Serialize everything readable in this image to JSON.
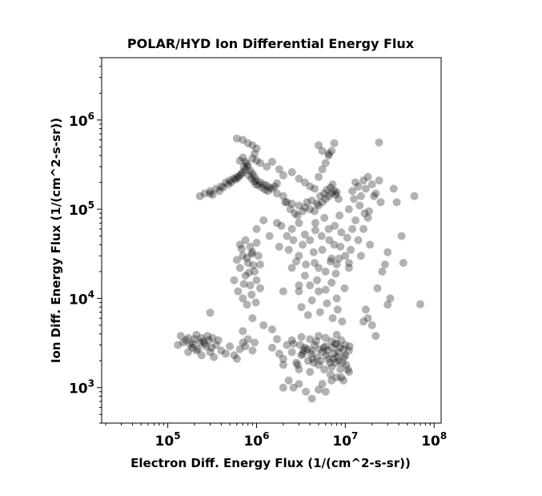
{
  "chart_data": {
    "type": "scatter",
    "title": "POLAR/HYD  Ion Differential Energy Flux",
    "xlabel": "Electron Diff. Energy Flux (1/(cm^2-s-sr))",
    "ylabel": "Ion Diff. Energy Flux (1/(cm^2-s-sr))",
    "xscale": "log",
    "yscale": "log",
    "xlim": [
      18000,
      120000000
    ],
    "ylim": [
      400,
      5000000
    ],
    "xticks": [
      {
        "base": "10",
        "exp": "5",
        "value": 100000
      },
      {
        "base": "10",
        "exp": "6",
        "value": 1000000
      },
      {
        "base": "10",
        "exp": "7",
        "value": 10000000
      },
      {
        "base": "10",
        "exp": "8",
        "value": 100000000
      }
    ],
    "yticks": [
      {
        "base": "10",
        "exp": "3",
        "value": 1000
      },
      {
        "base": "10",
        "exp": "4",
        "value": 10000
      },
      {
        "base": "10",
        "exp": "5",
        "value": 100000
      },
      {
        "base": "10",
        "exp": "6",
        "value": 1000000
      }
    ],
    "grid": false,
    "marker_color": "#000000",
    "marker_opacity": 0.3,
    "points": [
      [
        130000,
        3000
      ],
      [
        160000,
        3400
      ],
      [
        190000,
        3100
      ],
      [
        220000,
        2700
      ],
      [
        250000,
        3300
      ],
      [
        270000,
        2900
      ],
      [
        300000,
        2500
      ],
      [
        320000,
        3600
      ],
      [
        350000,
        3000
      ],
      [
        400000,
        2600
      ],
      [
        140000,
        3800
      ],
      [
        170000,
        2500
      ],
      [
        210000,
        3900
      ],
      [
        240000,
        2300
      ],
      [
        280000,
        3800
      ],
      [
        330000,
        2200
      ],
      [
        370000,
        3400
      ],
      [
        450000,
        2400
      ],
      [
        500000,
        2900
      ],
      [
        560000,
        2300
      ],
      [
        600000,
        2100
      ],
      [
        650000,
        2700
      ],
      [
        700000,
        3200
      ],
      [
        750000,
        2900
      ],
      [
        800000,
        3500
      ],
      [
        900000,
        2600
      ],
      [
        950000,
        3200
      ],
      [
        300000,
        6900
      ],
      [
        700000,
        4300
      ],
      [
        150000,
        3200
      ],
      [
        180000,
        3000
      ],
      [
        200000,
        3500
      ],
      [
        230000,
        3200
      ],
      [
        260000,
        3100
      ],
      [
        290000,
        3400
      ],
      [
        310000,
        2800
      ],
      [
        190000,
        2800
      ],
      [
        210000,
        2600
      ],
      [
        240000,
        3600
      ],
      [
        170000,
        3600
      ],
      [
        1500000,
        2800
      ],
      [
        1800000,
        2400
      ],
      [
        2000000,
        2100
      ],
      [
        2200000,
        3000
      ],
      [
        2500000,
        2500
      ],
      [
        2800000,
        1900
      ],
      [
        3000000,
        1600
      ],
      [
        3200000,
        2300
      ],
      [
        3500000,
        2800
      ],
      [
        3800000,
        2000
      ],
      [
        4000000,
        1500
      ],
      [
        4200000,
        2600
      ],
      [
        4500000,
        3000
      ],
      [
        4800000,
        2200
      ],
      [
        5000000,
        1800
      ],
      [
        5500000,
        2500
      ],
      [
        6000000,
        2900
      ],
      [
        6500000,
        2100
      ],
      [
        7000000,
        1700
      ],
      [
        7500000,
        2400
      ],
      [
        8000000,
        3100
      ],
      [
        8500000,
        2000
      ],
      [
        9000000,
        1300
      ],
      [
        9500000,
        2700
      ],
      [
        10000000,
        2300
      ],
      [
        2300000,
        1200
      ],
      [
        2600000,
        1000
      ],
      [
        3000000,
        1100
      ],
      [
        3600000,
        900
      ],
      [
        4200000,
        750
      ],
      [
        5000000,
        950
      ],
      [
        5500000,
        1100
      ],
      [
        6000000,
        900
      ],
      [
        7000000,
        1200
      ],
      [
        8000000,
        1300
      ],
      [
        9500000,
        1200
      ],
      [
        11000000,
        1500
      ],
      [
        2500000,
        3400
      ],
      [
        3200000,
        3700
      ],
      [
        4000000,
        3500
      ],
      [
        5000000,
        3800
      ],
      [
        6000000,
        3600
      ],
      [
        7000000,
        3300
      ],
      [
        8000000,
        3900
      ],
      [
        9000000,
        3400
      ],
      [
        10000000,
        3000
      ],
      [
        11000000,
        2600
      ],
      [
        1700000,
        3500
      ],
      [
        2000000,
        1800
      ],
      [
        4400000,
        1900
      ],
      [
        5800000,
        1600
      ],
      [
        6800000,
        1400
      ],
      [
        7800000,
        1900
      ],
      [
        8800000,
        1600
      ],
      [
        3400000,
        2600
      ],
      [
        4100000,
        2400
      ],
      [
        5100000,
        2700
      ],
      [
        6100000,
        2300
      ],
      [
        7100000,
        2800
      ],
      [
        8100000,
        2200
      ],
      [
        600000,
        27000
      ],
      [
        650000,
        22000
      ],
      [
        700000,
        30000
      ],
      [
        750000,
        18000
      ],
      [
        800000,
        25000
      ],
      [
        850000,
        14000
      ],
      [
        900000,
        33000
      ],
      [
        950000,
        20000
      ],
      [
        1000000,
        16000
      ],
      [
        1100000,
        24000
      ],
      [
        620000,
        12000
      ],
      [
        700000,
        10000
      ],
      [
        780000,
        8500
      ],
      [
        880000,
        11000
      ],
      [
        980000,
        9000
      ],
      [
        1100000,
        13000
      ],
      [
        650000,
        40000
      ],
      [
        750000,
        45000
      ],
      [
        850000,
        38000
      ],
      [
        1000000,
        42000
      ],
      [
        560000,
        16000
      ],
      [
        720000,
        14500
      ],
      [
        820000,
        19500
      ],
      [
        920000,
        23500
      ],
      [
        680000,
        36000
      ],
      [
        1050000,
        30000
      ],
      [
        780000,
        28500
      ],
      [
        880000,
        31500
      ],
      [
        3000000,
        30000
      ],
      [
        3500000,
        18000
      ],
      [
        4000000,
        45000
      ],
      [
        4500000,
        25000
      ],
      [
        5000000,
        12000
      ],
      [
        5500000,
        35000
      ],
      [
        6000000,
        20000
      ],
      [
        6500000,
        60000
      ],
      [
        7000000,
        15000
      ],
      [
        7500000,
        40000
      ],
      [
        8000000,
        10000
      ],
      [
        8500000,
        28000
      ],
      [
        9000000,
        55000
      ],
      [
        3200000,
        8000
      ],
      [
        3800000,
        6500
      ],
      [
        4200000,
        9500
      ],
      [
        5200000,
        7000
      ],
      [
        6200000,
        8800
      ],
      [
        7200000,
        6000
      ],
      [
        8200000,
        7500
      ],
      [
        9200000,
        5500
      ],
      [
        10000000,
        30000
      ],
      [
        11000000,
        22000
      ],
      [
        3000000,
        14000
      ],
      [
        3600000,
        24000
      ],
      [
        4400000,
        33000
      ],
      [
        4800000,
        16000
      ],
      [
        5400000,
        50000
      ],
      [
        6800000,
        26000
      ],
      [
        7800000,
        19000
      ],
      [
        8800000,
        38000
      ],
      [
        9800000,
        13000
      ],
      [
        2000000,
        12000
      ],
      [
        2500000,
        22000
      ],
      [
        1800000,
        38000
      ],
      [
        2200000,
        50000
      ],
      [
        3300000,
        40000
      ],
      [
        4600000,
        70000
      ],
      [
        5800000,
        80000
      ],
      [
        6600000,
        45000
      ],
      [
        7600000,
        65000
      ],
      [
        8600000,
        85000
      ],
      [
        10500000,
        48000
      ],
      [
        11500000,
        35000
      ],
      [
        3000000,
        12000
      ],
      [
        4000000,
        14000
      ],
      [
        5000000,
        22000
      ],
      [
        6000000,
        12500
      ],
      [
        7000000,
        28000
      ],
      [
        8000000,
        24000
      ],
      [
        3500000,
        52000
      ],
      [
        4600000,
        58000
      ],
      [
        230000,
        140000
      ],
      [
        260000,
        150000
      ],
      [
        300000,
        160000
      ],
      [
        350000,
        170000
      ],
      [
        400000,
        180000
      ],
      [
        450000,
        200000
      ],
      [
        500000,
        210000
      ],
      [
        550000,
        220000
      ],
      [
        600000,
        230000
      ],
      [
        650000,
        240000
      ],
      [
        700000,
        260000
      ],
      [
        750000,
        280000
      ],
      [
        650000,
        350000
      ],
      [
        700000,
        380000
      ],
      [
        750000,
        340000
      ],
      [
        800000,
        300000
      ],
      [
        850000,
        270000
      ],
      [
        900000,
        250000
      ],
      [
        950000,
        230000
      ],
      [
        1000000,
        210000
      ],
      [
        1100000,
        200000
      ],
      [
        1200000,
        190000
      ],
      [
        1300000,
        185000
      ],
      [
        1400000,
        175000
      ],
      [
        1500000,
        170000
      ],
      [
        1600000,
        180000
      ],
      [
        1700000,
        195000
      ],
      [
        300000,
        150000
      ],
      [
        320000,
        145000
      ],
      [
        380000,
        160000
      ],
      [
        420000,
        175000
      ],
      [
        480000,
        190000
      ],
      [
        520000,
        200000
      ],
      [
        580000,
        215000
      ],
      [
        620000,
        225000
      ],
      [
        680000,
        250000
      ],
      [
        720000,
        300000
      ],
      [
        780000,
        320000
      ],
      [
        820000,
        240000
      ],
      [
        880000,
        220000
      ],
      [
        940000,
        205000
      ],
      [
        980000,
        190000
      ],
      [
        1050000,
        185000
      ],
      [
        1150000,
        175000
      ],
      [
        1250000,
        165000
      ],
      [
        1350000,
        160000
      ],
      [
        900000,
        370000
      ],
      [
        1000000,
        350000
      ],
      [
        950000,
        420000
      ],
      [
        1100000,
        330000
      ],
      [
        1700000,
        150000
      ],
      [
        2000000,
        140000
      ],
      [
        2200000,
        120000
      ],
      [
        2500000,
        115000
      ],
      [
        3000000,
        110000
      ],
      [
        3500000,
        105000
      ],
      [
        4000000,
        100000
      ],
      [
        4500000,
        95000
      ],
      [
        5000000,
        110000
      ],
      [
        5500000,
        120000
      ],
      [
        6000000,
        130000
      ],
      [
        6500000,
        140000
      ],
      [
        7000000,
        150000
      ],
      [
        7500000,
        160000
      ],
      [
        8000000,
        155000
      ],
      [
        2000000,
        240000
      ],
      [
        2500000,
        260000
      ],
      [
        3000000,
        220000
      ],
      [
        3500000,
        200000
      ],
      [
        4000000,
        180000
      ],
      [
        4500000,
        170000
      ],
      [
        5000000,
        230000
      ],
      [
        5500000,
        280000
      ],
      [
        6000000,
        330000
      ],
      [
        6500000,
        400000
      ],
      [
        7000000,
        450000
      ],
      [
        7500000,
        550000
      ],
      [
        1300000,
        300000
      ],
      [
        1500000,
        340000
      ],
      [
        1800000,
        280000
      ],
      [
        2100000,
        120000
      ],
      [
        2400000,
        100000
      ],
      [
        2700000,
        90000
      ],
      [
        2900000,
        85000
      ],
      [
        3300000,
        95000
      ],
      [
        3700000,
        120000
      ],
      [
        4200000,
        125000
      ],
      [
        4800000,
        115000
      ],
      [
        5200000,
        140000
      ],
      [
        5800000,
        150000
      ],
      [
        6200000,
        165000
      ],
      [
        6800000,
        175000
      ],
      [
        7200000,
        190000
      ],
      [
        7800000,
        145000
      ],
      [
        8400000,
        130000
      ],
      [
        600000,
        620000
      ],
      [
        700000,
        600000
      ],
      [
        800000,
        550000
      ],
      [
        900000,
        520000
      ],
      [
        1000000,
        480000
      ],
      [
        5000000,
        520000
      ],
      [
        5500000,
        450000
      ],
      [
        6500000,
        420000
      ],
      [
        12000000,
        160000
      ],
      [
        13000000,
        200000
      ],
      [
        14000000,
        180000
      ],
      [
        15000000,
        140000
      ],
      [
        16000000,
        210000
      ],
      [
        17000000,
        170000
      ],
      [
        18000000,
        230000
      ],
      [
        20000000,
        190000
      ],
      [
        22000000,
        150000
      ],
      [
        25000000,
        120000
      ],
      [
        11000000,
        100000
      ],
      [
        12500000,
        130000
      ],
      [
        14500000,
        110000
      ],
      [
        16500000,
        90000
      ],
      [
        18500000,
        95000
      ],
      [
        21000000,
        140000
      ],
      [
        24000000,
        210000
      ],
      [
        24000000,
        560000
      ],
      [
        35000000,
        170000
      ],
      [
        38000000,
        120000
      ],
      [
        43000000,
        50000
      ],
      [
        60000000,
        140000
      ],
      [
        45000000,
        25000
      ],
      [
        30000000,
        33000
      ],
      [
        28000000,
        24000
      ],
      [
        32000000,
        10000
      ],
      [
        30000000,
        8500
      ],
      [
        17000000,
        7500
      ],
      [
        18000000,
        6000
      ],
      [
        16000000,
        5500
      ],
      [
        20000000,
        5000
      ],
      [
        22000000,
        3800
      ],
      [
        23000000,
        13000
      ],
      [
        70000000,
        8600
      ],
      [
        26000000,
        20000
      ],
      [
        19000000,
        40000
      ],
      [
        14000000,
        45000
      ],
      [
        12000000,
        60000
      ],
      [
        15000000,
        30000
      ],
      [
        11000000,
        25000
      ],
      [
        13000000,
        75000
      ],
      [
        16000000,
        60000
      ],
      [
        18000000,
        80000
      ],
      [
        2000000,
        1000
      ],
      [
        1500000,
        4500
      ],
      [
        1200000,
        5000
      ],
      [
        900000,
        6000
      ],
      [
        3000000,
        70000
      ],
      [
        2500000,
        60000
      ],
      [
        2300000,
        35000
      ],
      [
        2800000,
        26000
      ],
      [
        1200000,
        75000
      ],
      [
        1000000,
        60000
      ],
      [
        1400000,
        50000
      ],
      [
        1700000,
        70000
      ],
      [
        1900000,
        65000
      ],
      [
        2600000,
        45000
      ],
      [
        3100000,
        3000
      ],
      [
        3300000,
        2400
      ],
      [
        3700000,
        2700
      ],
      [
        4300000,
        2100
      ],
      [
        4700000,
        3300
      ],
      [
        5300000,
        2000
      ],
      [
        5700000,
        2800
      ],
      [
        6300000,
        2600
      ],
      [
        6700000,
        1900
      ],
      [
        7300000,
        2100
      ],
      [
        7700000,
        3100
      ],
      [
        8300000,
        2500
      ],
      [
        8700000,
        2800
      ],
      [
        9300000,
        1900
      ],
      [
        9700000,
        2200
      ],
      [
        10200000,
        1800
      ],
      [
        10700000,
        1600
      ],
      [
        11200000,
        2900
      ],
      [
        2900000,
        1800
      ],
      [
        2600000,
        3100
      ]
    ]
  }
}
